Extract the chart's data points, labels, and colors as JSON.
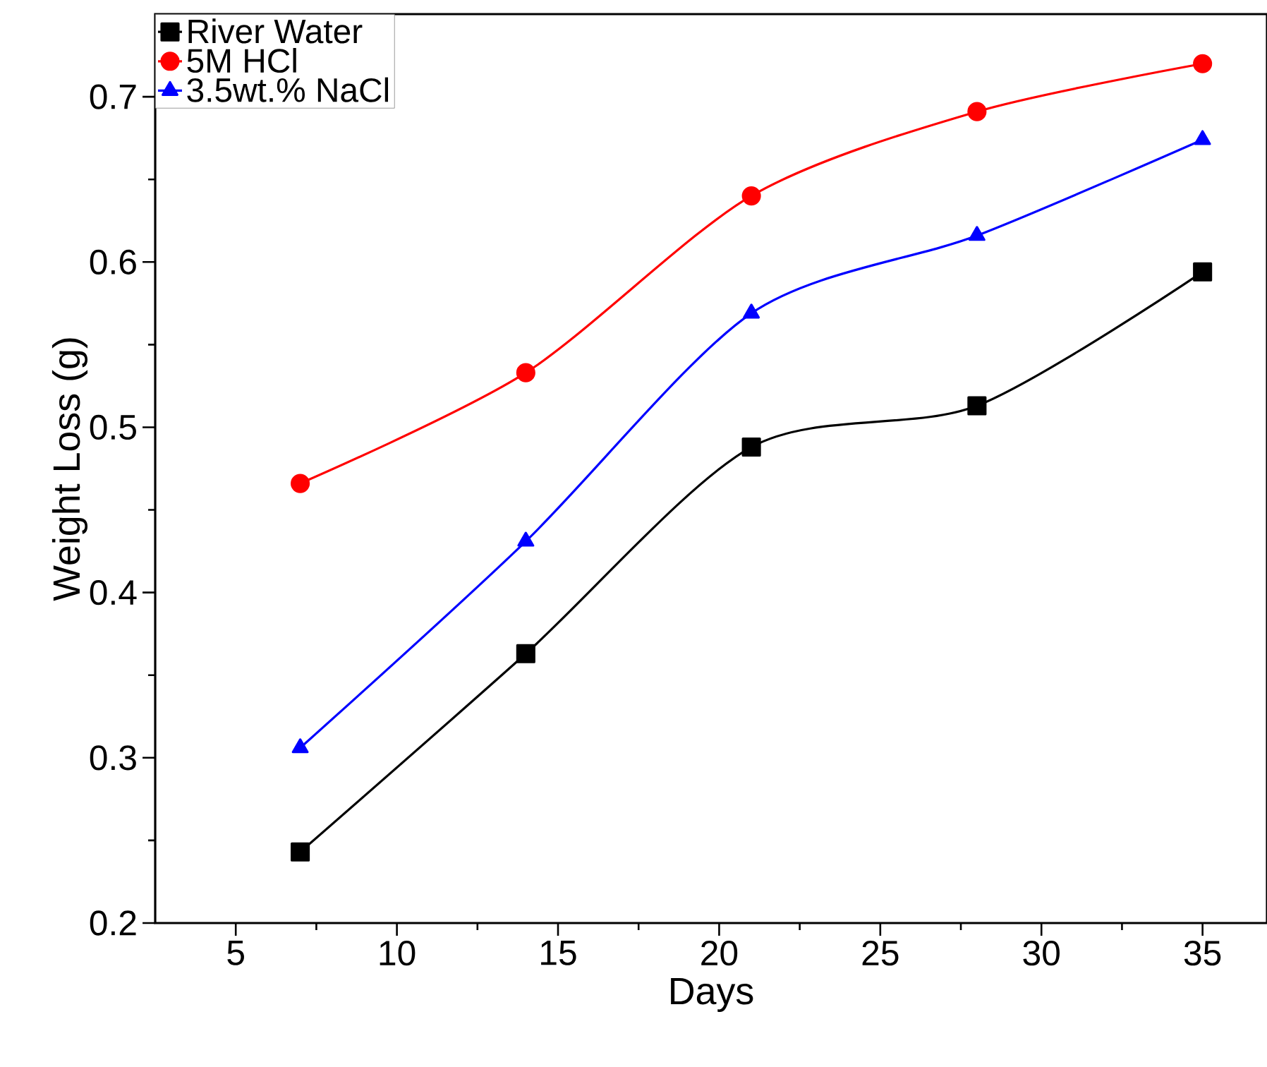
{
  "chart_data": {
    "type": "line",
    "xlabel": "Days",
    "ylabel": "Weight Loss (g)",
    "x": [
      7,
      14,
      21,
      28,
      35
    ],
    "series": [
      {
        "name": "River Water",
        "color": "#000000",
        "marker": "square",
        "values": [
          0.243,
          0.363,
          0.488,
          0.513,
          0.594
        ]
      },
      {
        "name": "5M HCl",
        "color": "#ff0000",
        "marker": "circle",
        "values": [
          0.466,
          0.533,
          0.64,
          0.691,
          0.72
        ]
      },
      {
        "name": "3.5wt.% NaCl",
        "color": "#0000ff",
        "marker": "triangle",
        "values": [
          0.306,
          0.431,
          0.569,
          0.616,
          0.674
        ]
      }
    ],
    "xlim": [
      2.5,
      37
    ],
    "ylim": [
      0.2,
      0.75
    ],
    "xticks": [
      5,
      10,
      15,
      20,
      25,
      30,
      35
    ],
    "yticks": [
      0.2,
      0.3,
      0.4,
      0.5,
      0.6,
      0.7
    ],
    "legend": "top left",
    "grid": false,
    "line_style": "solid"
  }
}
